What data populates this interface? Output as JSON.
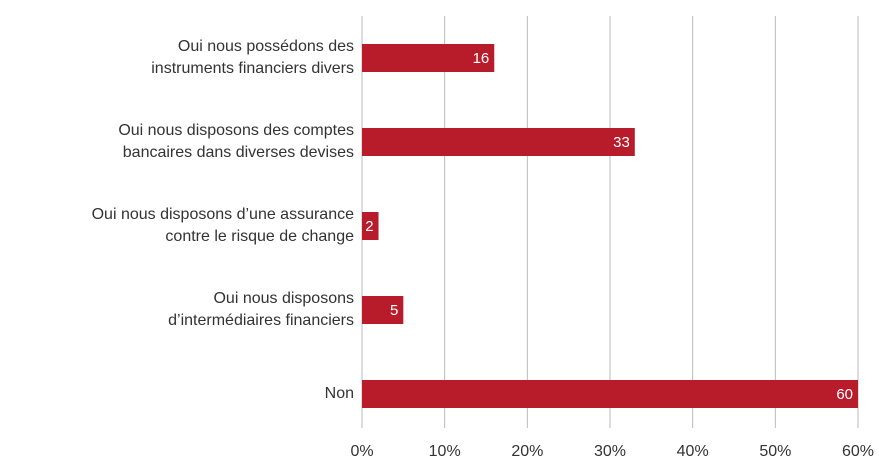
{
  "chart_data": {
    "type": "barh",
    "categories": [
      "Oui nous possédons des\ninstruments financiers divers",
      "Oui nous disposons des comptes\nbancaires dans diverses devises",
      "Oui nous disposons d’une assurance\ncontre le risque de change",
      "Oui nous disposons\nd’intermédiaires financiers",
      "Non"
    ],
    "values": [
      16,
      33,
      2,
      5,
      60
    ],
    "color": "#b81c2b",
    "xlim": [
      0,
      60
    ],
    "xticks": [
      {
        "value": 0,
        "label": "0%"
      },
      {
        "value": 10,
        "label": "10%"
      },
      {
        "value": 20,
        "label": "20%"
      },
      {
        "value": 30,
        "label": "30%"
      },
      {
        "value": 40,
        "label": "40%"
      },
      {
        "value": 50,
        "label": "50%"
      },
      {
        "value": 60,
        "label": "60%"
      }
    ],
    "grid": true
  }
}
